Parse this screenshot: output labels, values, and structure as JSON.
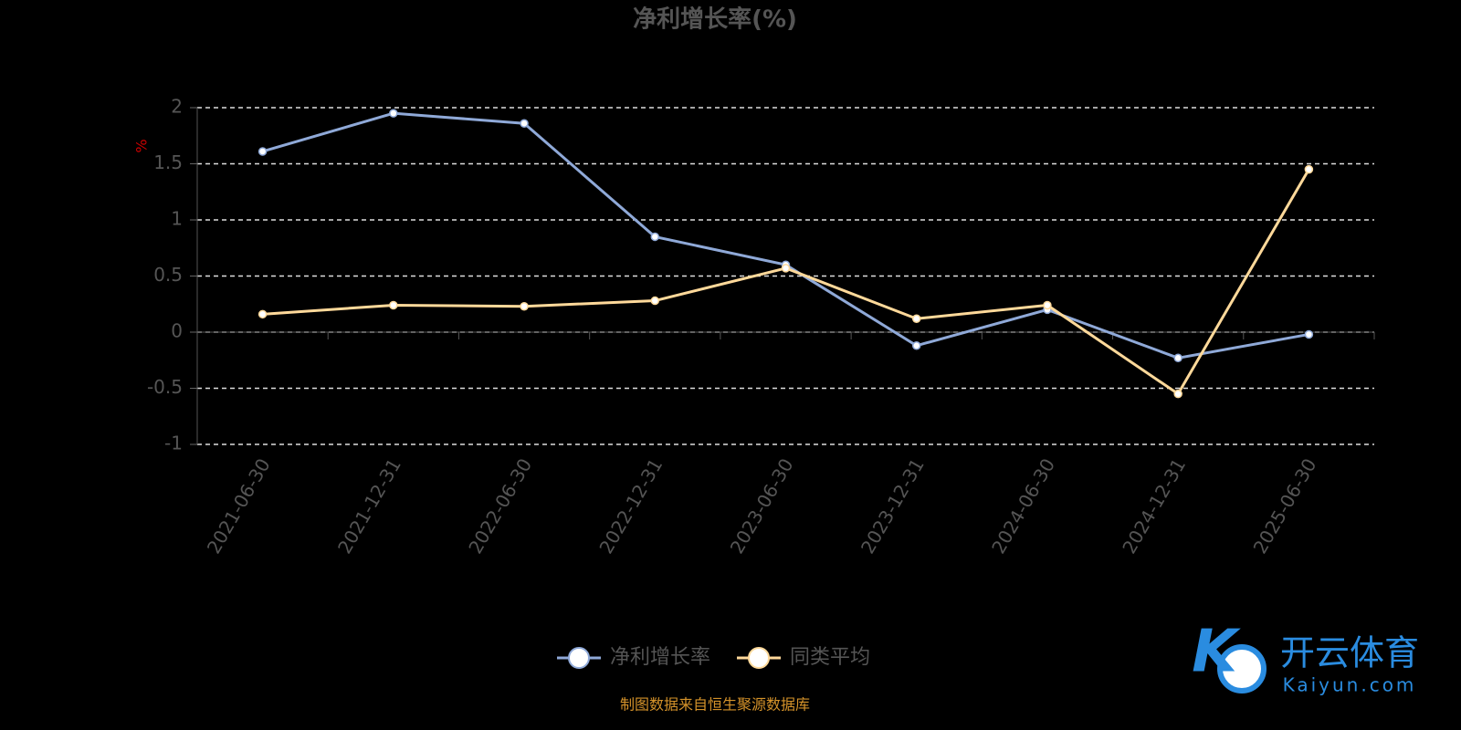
{
  "chart_data": {
    "type": "line",
    "title": "净利增长率(%)",
    "y_unit": "%",
    "categories": [
      "2021-06-30",
      "2021-12-31",
      "2022-06-30",
      "2022-12-31",
      "2023-06-30",
      "2023-12-31",
      "2024-06-30",
      "2024-12-31",
      "2025-06-30"
    ],
    "series": [
      {
        "name": "净利增长率",
        "color": "#8fa9d8",
        "values": [
          1.61,
          1.95,
          1.86,
          0.85,
          0.6,
          -0.12,
          0.2,
          -0.23,
          -0.02
        ]
      },
      {
        "name": "同类平均",
        "color": "#ffd99a",
        "values": [
          0.16,
          0.24,
          0.23,
          0.28,
          0.57,
          0.12,
          0.24,
          -0.55,
          1.45
        ]
      }
    ],
    "ylim": [
      -1,
      2
    ],
    "yticks": [
      -1,
      -0.5,
      0,
      0.5,
      1,
      1.5,
      2
    ],
    "grid": true,
    "source": "制图数据来自恒生聚源数据库",
    "watermark": {
      "name": "开云体育",
      "url": "Kaiyun.com"
    }
  }
}
